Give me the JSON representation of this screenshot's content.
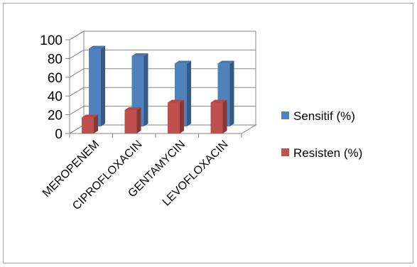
{
  "chart_data": {
    "type": "bar",
    "categories": [
      "MEROPENEM",
      "CIPROFLOXACIN",
      "GENTAMYCIN",
      "LEVOFLOXACIN"
    ],
    "series": [
      {
        "name": "Sensitif  (%)",
        "values": [
          83,
          75,
          67,
          67
        ],
        "color": "#4f81bd"
      },
      {
        "name": "Resisten (%)",
        "values": [
          17,
          25,
          33,
          33
        ],
        "color": "#c0504d"
      }
    ],
    "ylim": [
      0,
      100
    ],
    "yticks": [
      "0",
      "20",
      "40",
      "60",
      "80",
      "100"
    ],
    "grid": true,
    "legend_position": "right",
    "title": "",
    "xlabel": "",
    "ylabel": ""
  }
}
